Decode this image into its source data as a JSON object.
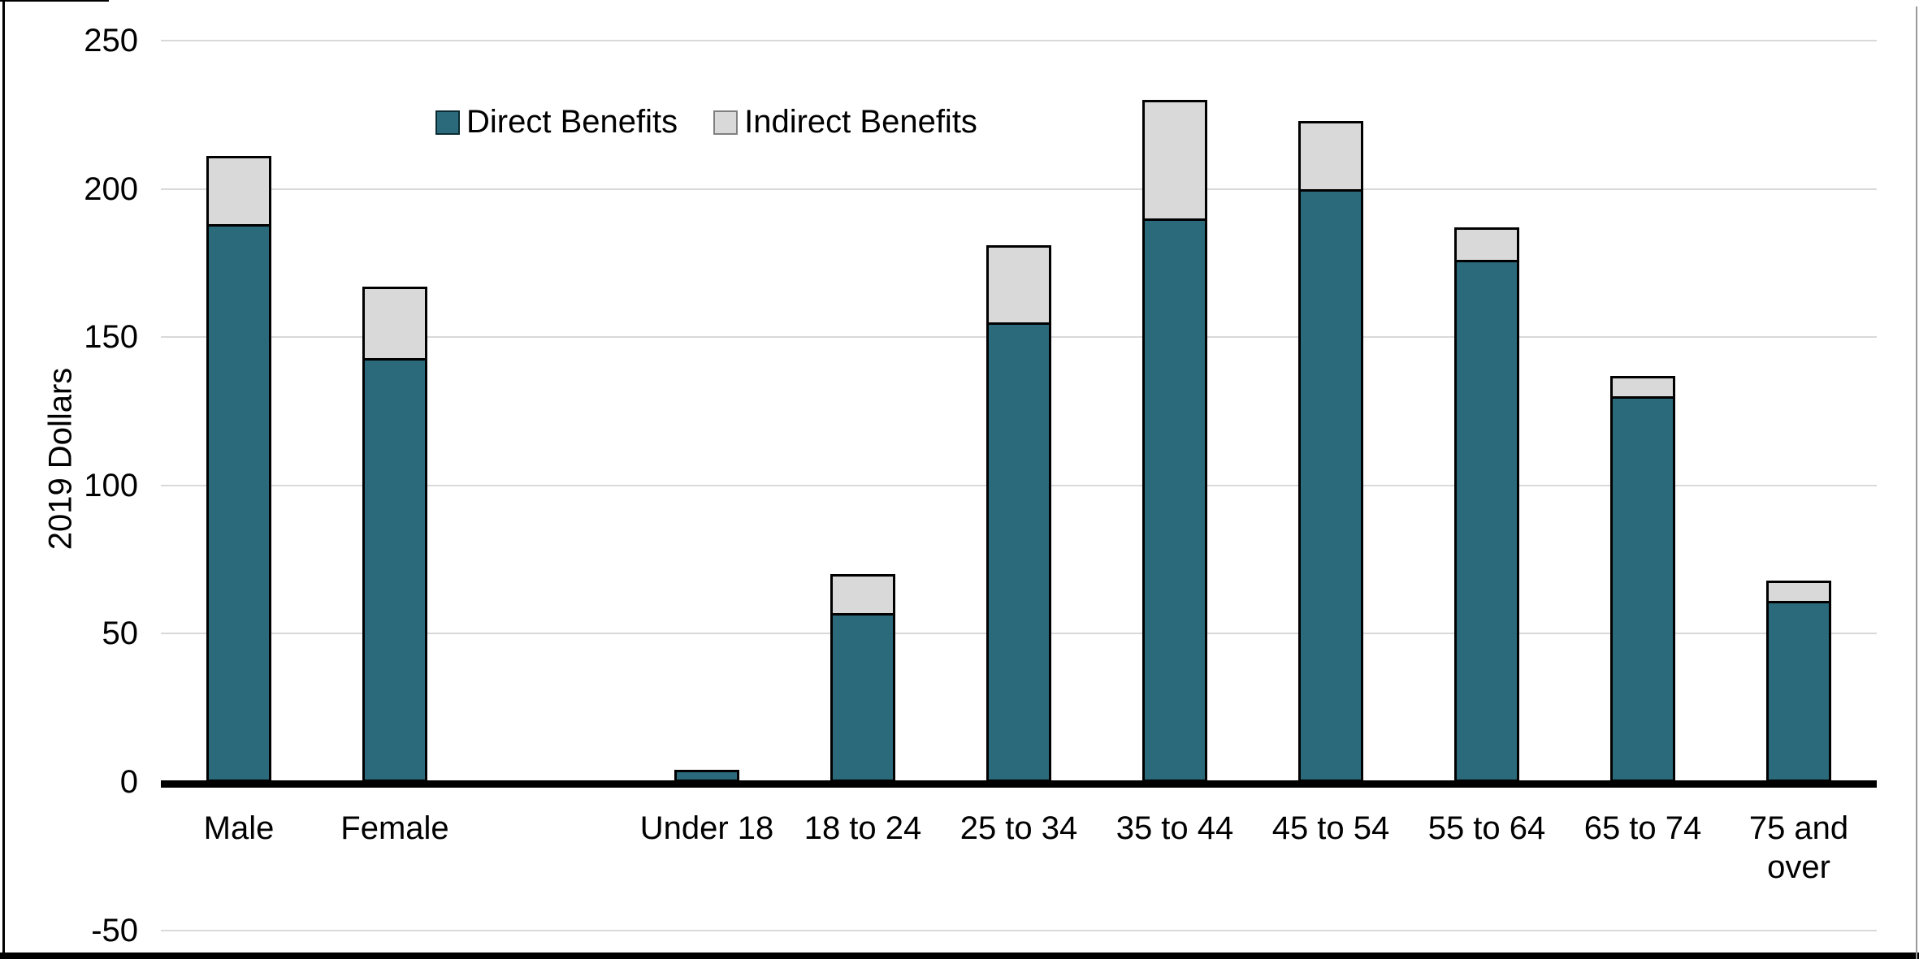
{
  "chart_data": {
    "type": "bar",
    "stacked": true,
    "title": "",
    "xlabel": "",
    "ylabel": "2019 Dollars",
    "ylim": [
      -50,
      250
    ],
    "yticks": [
      250,
      200,
      150,
      100,
      50,
      0,
      -50
    ],
    "grid": "horizontal-light-gray",
    "legend_position": "inside-top-left-of-plot",
    "categories": [
      "Male",
      "Female",
      "Under 18",
      "18 to 24",
      "25 to 34",
      "35 to 44",
      "45 to 54",
      "55 to 64",
      "65 to 74",
      "75 and over"
    ],
    "category_groups": [
      [
        "Male",
        "Female"
      ],
      [
        "Under 18",
        "18 to 24",
        "25 to 34",
        "35 to 44",
        "45 to 54",
        "55 to 64",
        "65 to 74",
        "75 and over"
      ]
    ],
    "series": [
      {
        "name": "Direct Benefits",
        "color": "#2A6A7B",
        "values": [
          188,
          143,
          4,
          57,
          155,
          190,
          200,
          176,
          130,
          61
        ]
      },
      {
        "name": "Indirect Benefits",
        "color": "#D9D9D9",
        "values": [
          23,
          24,
          0,
          13,
          26,
          40,
          23,
          11,
          7,
          7
        ]
      }
    ],
    "totals": [
      211,
      167,
      4,
      70,
      181,
      230,
      223,
      187,
      137,
      68
    ],
    "colors": {
      "direct": "#2A6A7B",
      "indirect": "#D9D9D9",
      "gridline": "#D9D9D9",
      "axis": "#000000"
    }
  }
}
